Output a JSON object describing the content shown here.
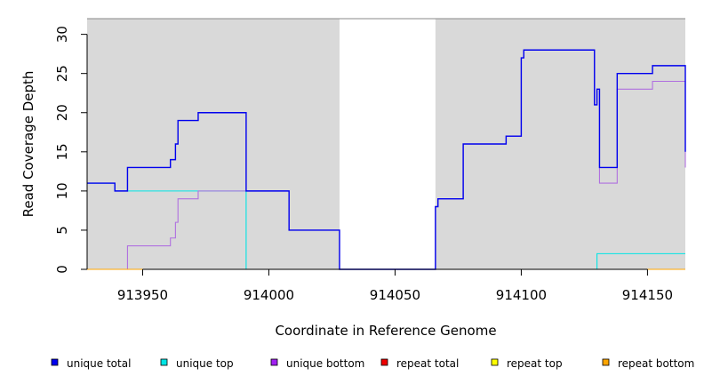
{
  "chart_data": {
    "type": "line",
    "title": "",
    "xlabel": "Coordinate in Reference Genome",
    "ylabel": "Read Coverage Depth",
    "xlim": [
      913928,
      914165
    ],
    "ylim": [
      0,
      32
    ],
    "xticks": [
      913950,
      914000,
      914050,
      914100,
      914150
    ],
    "yticks": [
      0,
      5,
      10,
      15,
      20,
      25,
      30
    ],
    "gaps": [
      [
        914028,
        914066
      ]
    ],
    "background_color": "#d9d9d9",
    "series": [
      {
        "name": "unique total",
        "color": "#0000ee",
        "points": [
          [
            913928,
            11
          ],
          [
            913939,
            11
          ],
          [
            913939,
            10
          ],
          [
            913944,
            10
          ],
          [
            913944,
            13
          ],
          [
            913961,
            13
          ],
          [
            913961,
            14
          ],
          [
            913963,
            14
          ],
          [
            913963,
            16
          ],
          [
            913964,
            16
          ],
          [
            913964,
            19
          ],
          [
            913972,
            19
          ],
          [
            913972,
            20
          ],
          [
            913991,
            20
          ],
          [
            913991,
            10
          ],
          [
            914008,
            10
          ],
          [
            914008,
            5
          ],
          [
            914028,
            5
          ],
          [
            914028,
            0
          ],
          [
            914066,
            0
          ],
          [
            914066,
            8
          ],
          [
            914067,
            8
          ],
          [
            914067,
            9
          ],
          [
            914077,
            9
          ],
          [
            914077,
            16
          ],
          [
            914094,
            16
          ],
          [
            914094,
            17
          ],
          [
            914100,
            17
          ],
          [
            914100,
            27
          ],
          [
            914101,
            27
          ],
          [
            914101,
            28
          ],
          [
            914129,
            28
          ],
          [
            914129,
            21
          ],
          [
            914130,
            21
          ],
          [
            914130,
            23
          ],
          [
            914131,
            23
          ],
          [
            914131,
            13
          ],
          [
            914138,
            13
          ],
          [
            914138,
            25
          ],
          [
            914152,
            25
          ],
          [
            914152,
            26
          ],
          [
            914165,
            26
          ],
          [
            914165,
            15
          ]
        ]
      },
      {
        "name": "unique top",
        "color": "#00e5e5",
        "points": [
          [
            913928,
            11
          ],
          [
            913939,
            11
          ],
          [
            913939,
            10
          ],
          [
            913991,
            10
          ],
          [
            913991,
            0
          ],
          [
            914130,
            0
          ],
          [
            914130,
            2
          ],
          [
            914165,
            2
          ]
        ]
      },
      {
        "name": "unique bottom",
        "color": "#b070e0",
        "points": [
          [
            913928,
            0
          ],
          [
            913944,
            0
          ],
          [
            913944,
            3
          ],
          [
            913961,
            3
          ],
          [
            913961,
            4
          ],
          [
            913963,
            4
          ],
          [
            913963,
            6
          ],
          [
            913964,
            6
          ],
          [
            913964,
            9
          ],
          [
            913972,
            9
          ],
          [
            913972,
            10
          ],
          [
            914008,
            10
          ],
          [
            914008,
            5
          ],
          [
            914028,
            5
          ],
          [
            914028,
            0
          ],
          [
            914066,
            0
          ],
          [
            914066,
            8
          ],
          [
            914067,
            8
          ],
          [
            914067,
            9
          ],
          [
            914077,
            9
          ],
          [
            914077,
            16
          ],
          [
            914094,
            16
          ],
          [
            914094,
            17
          ],
          [
            914100,
            17
          ],
          [
            914100,
            27
          ],
          [
            914101,
            27
          ],
          [
            914101,
            28
          ],
          [
            914129,
            28
          ],
          [
            914129,
            21
          ],
          [
            914130,
            21
          ],
          [
            914130,
            23
          ],
          [
            914131,
            23
          ],
          [
            914131,
            11
          ],
          [
            914138,
            11
          ],
          [
            914138,
            23
          ],
          [
            914152,
            23
          ],
          [
            914152,
            24
          ],
          [
            914165,
            24
          ],
          [
            914165,
            13
          ]
        ]
      },
      {
        "name": "repeat total",
        "color": "#ee0000",
        "points": [
          [
            913928,
            0
          ],
          [
            914028,
            0
          ]
        ]
      },
      {
        "name": "repeat top",
        "color": "#eeee00",
        "points": [
          [
            913928,
            0
          ],
          [
            914028,
            0
          ]
        ]
      },
      {
        "name": "repeat bottom",
        "color": "#ffa500",
        "points": [
          [
            913928,
            0
          ],
          [
            914028,
            0
          ],
          [
            914028,
            0
          ],
          [
            914066,
            0
          ],
          [
            914066,
            0
          ],
          [
            914165,
            0
          ]
        ]
      }
    ],
    "legend": {
      "placement": "bottom",
      "items": [
        {
          "label": "unique total",
          "color": "#0000ee"
        },
        {
          "label": "unique top",
          "color": "#00e5e5"
        },
        {
          "label": "unique bottom",
          "color": "#a020f0"
        },
        {
          "label": "repeat total",
          "color": "#ee0000"
        },
        {
          "label": "repeat top",
          "color": "#ffff00"
        },
        {
          "label": "repeat bottom",
          "color": "#ffa500"
        }
      ]
    }
  }
}
